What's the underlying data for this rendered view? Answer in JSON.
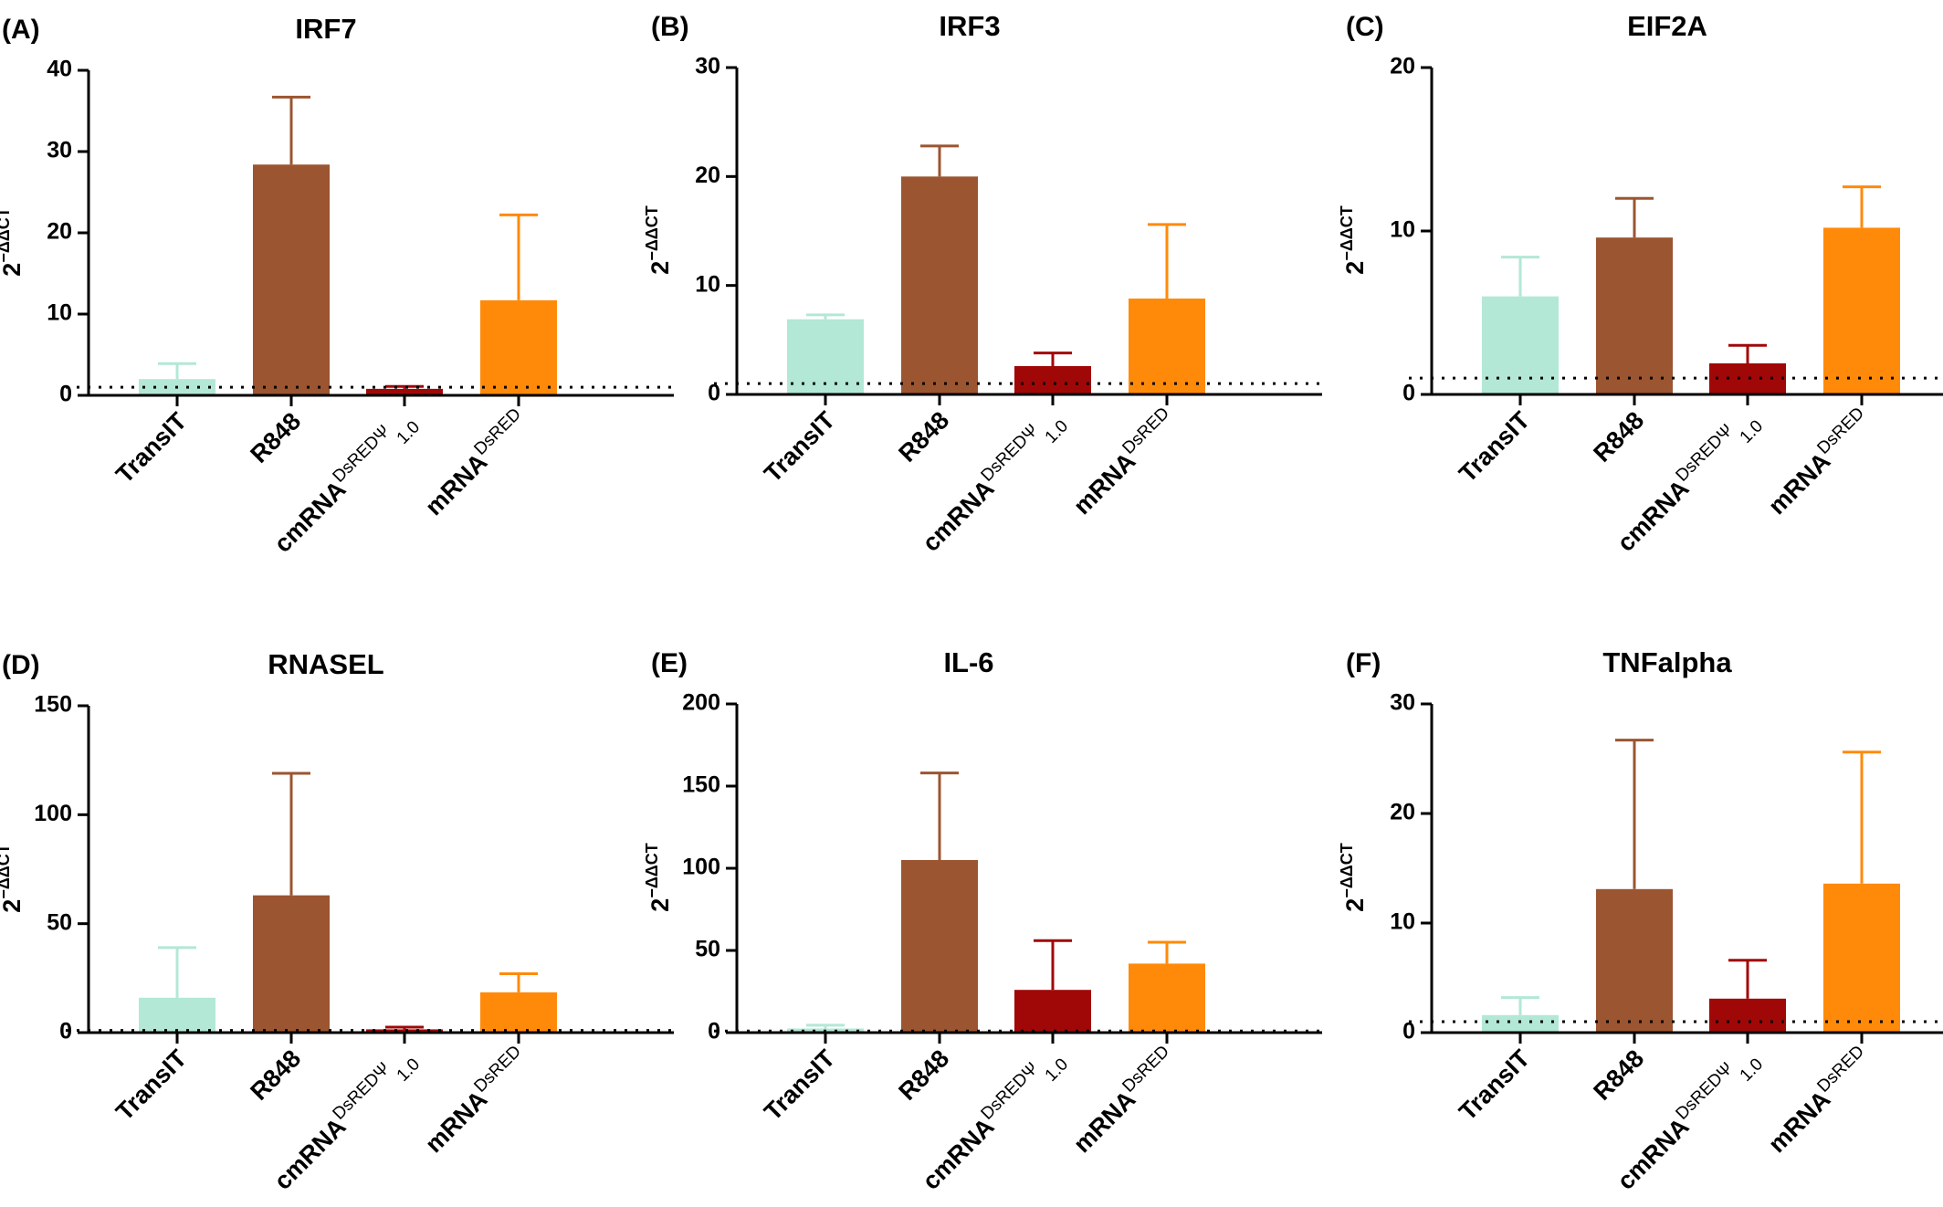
{
  "chart_data": [
    {
      "type": "bar",
      "letter": "(A)",
      "title": "IRF7",
      "ylabel": "2",
      "ylabel_sup": "−ΔΔCT",
      "ylim": [
        0,
        40
      ],
      "yticks": [
        "0",
        "10",
        "20",
        "30",
        "40"
      ],
      "reference_line": 1,
      "categories": [
        {
          "base": "TransIT",
          "sup": "",
          "sub": ""
        },
        {
          "base": "R848",
          "sup": "",
          "sub": ""
        },
        {
          "base": "cmRNA",
          "sup": "DsREDΨ",
          "sub": "1.0"
        },
        {
          "base": "mRNA",
          "sup": "DsRED",
          "sub": ""
        }
      ],
      "values": [
        2.0,
        28.4,
        0.8,
        11.7
      ],
      "errors": [
        3.9,
        36.7,
        1.1,
        22.2
      ]
    },
    {
      "type": "bar",
      "letter": "(B)",
      "title": "IRF3",
      "ylabel": "2",
      "ylabel_sup": "−ΔΔCT",
      "ylim": [
        0,
        30
      ],
      "yticks": [
        "0",
        "10",
        "20",
        "30"
      ],
      "reference_line": 1,
      "categories": [
        {
          "base": "TransIT",
          "sup": "",
          "sub": ""
        },
        {
          "base": "R848",
          "sup": "",
          "sub": ""
        },
        {
          "base": "cmRNA",
          "sup": "DsREDΨ",
          "sub": "1.0"
        },
        {
          "base": "mRNA",
          "sup": "DsRED",
          "sub": ""
        }
      ],
      "values": [
        6.9,
        20.0,
        2.6,
        8.8
      ],
      "errors": [
        7.3,
        22.8,
        3.8,
        15.6
      ]
    },
    {
      "type": "bar",
      "letter": "(C)",
      "title": "EIF2A",
      "ylabel": "2",
      "ylabel_sup": "−ΔΔCT",
      "ylim": [
        0,
        20
      ],
      "yticks": [
        "0",
        "10",
        "20"
      ],
      "reference_line": 1,
      "categories": [
        {
          "base": "TransIT",
          "sup": "",
          "sub": ""
        },
        {
          "base": "R848",
          "sup": "",
          "sub": ""
        },
        {
          "base": "cmRNA",
          "sup": "DsREDΨ",
          "sub": "1.0"
        },
        {
          "base": "mRNA",
          "sup": "DsRED",
          "sub": ""
        }
      ],
      "values": [
        6.0,
        9.6,
        1.9,
        10.2
      ],
      "errors": [
        8.4,
        12.0,
        3.0,
        12.7
      ]
    },
    {
      "type": "bar",
      "letter": "(D)",
      "title": "RNASEL",
      "ylabel": "2",
      "ylabel_sup": "−ΔΔCT",
      "ylim": [
        0,
        150
      ],
      "yticks": [
        "0",
        "50",
        "100",
        "150"
      ],
      "reference_line": 1,
      "categories": [
        {
          "base": "TransIT",
          "sup": "",
          "sub": ""
        },
        {
          "base": "R848",
          "sup": "",
          "sub": ""
        },
        {
          "base": "cmRNA",
          "sup": "DsREDΨ",
          "sub": "1.0"
        },
        {
          "base": "mRNA",
          "sup": "DsRED",
          "sub": ""
        }
      ],
      "values": [
        16,
        63,
        1.5,
        18.5
      ],
      "errors": [
        39,
        119,
        2.5,
        27
      ]
    },
    {
      "type": "bar",
      "letter": "(E)",
      "title": "IL-6",
      "ylabel": "2",
      "ylabel_sup": "−ΔΔCT",
      "ylim": [
        0,
        200
      ],
      "yticks": [
        "0",
        "50",
        "100",
        "150",
        "200"
      ],
      "reference_line": 1,
      "categories": [
        {
          "base": "TransIT",
          "sup": "",
          "sub": ""
        },
        {
          "base": "R848",
          "sup": "",
          "sub": ""
        },
        {
          "base": "cmRNA",
          "sup": "DsREDΨ",
          "sub": "1.0"
        },
        {
          "base": "mRNA",
          "sup": "DsRED",
          "sub": ""
        }
      ],
      "values": [
        2.5,
        105,
        26,
        42
      ],
      "errors": [
        4.5,
        158,
        56,
        55
      ]
    },
    {
      "type": "bar",
      "letter": "(F)",
      "title": "TNFalpha",
      "ylabel": "2",
      "ylabel_sup": "−ΔΔCT",
      "ylim": [
        0,
        30
      ],
      "yticks": [
        "0",
        "10",
        "20",
        "30"
      ],
      "reference_line": 1,
      "categories": [
        {
          "base": "TransIT",
          "sup": "",
          "sub": ""
        },
        {
          "base": "R848",
          "sup": "",
          "sub": ""
        },
        {
          "base": "cmRNA",
          "sup": "DsREDΨ",
          "sub": "1.0"
        },
        {
          "base": "mRNA",
          "sup": "DsRED",
          "sub": ""
        }
      ],
      "values": [
        1.6,
        13.1,
        3.1,
        13.6
      ],
      "errors": [
        3.2,
        26.7,
        6.6,
        25.6
      ]
    }
  ],
  "colors": {
    "bars": [
      "#b3e8d6",
      "#9b5530",
      "#a00808",
      "#ff8a0a"
    ],
    "axis": "#000000",
    "reference_line": "#000000"
  }
}
